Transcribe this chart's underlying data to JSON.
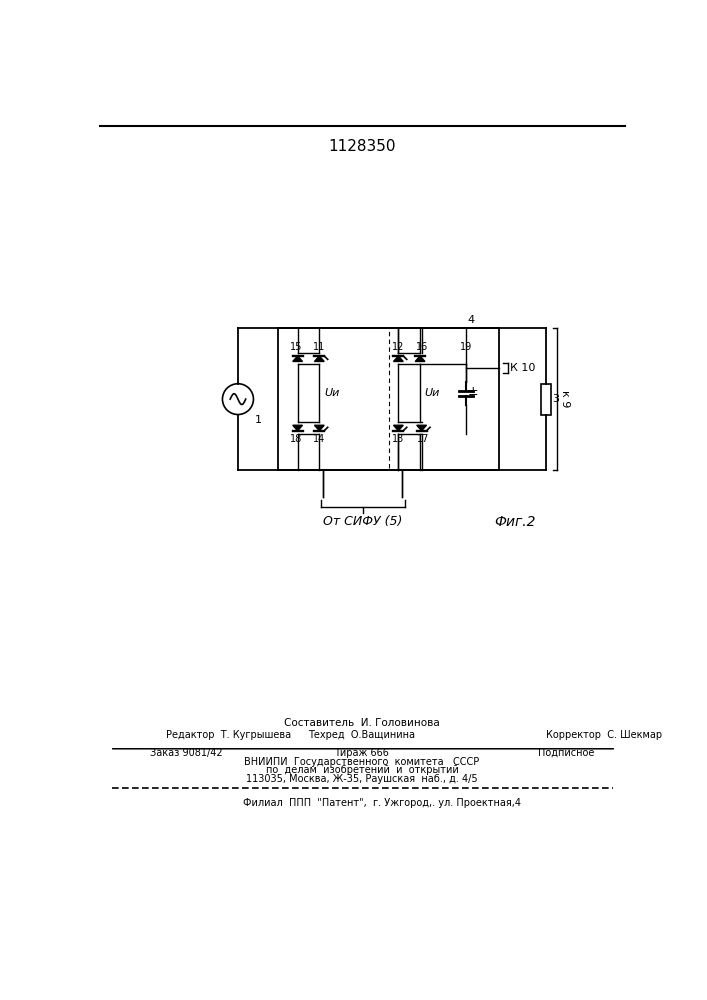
{
  "title": "1128350",
  "fig_label": "Фиг.2",
  "source_label": "От СИФУ (5)",
  "K10_label": "К 10",
  "K9_label": "к 9",
  "footer_line0": "Составитель  И. Головинова",
  "footer_editor": "Редактор  Т. Кугрышева",
  "footer_tech": "Техред  О.Ващинина",
  "footer_corr": "Корректор  С. Шекмар",
  "footer_order": "Заказ 9081/42",
  "footer_tirazh": "Тираж 666",
  "footer_podp": "Подписное",
  "footer_vniip": "ВНИИПИ  Государственного  комитета   СССР",
  "footer_po": "по  делам  изобретений  и  открытий",
  "footer_addr": "113035, Москва, Ж-35, Раушская  наб., д. 4/5",
  "footer_last": "Филиал  ППП  \"Патент\",  г. Ужгород,. ул. Проектная,4"
}
